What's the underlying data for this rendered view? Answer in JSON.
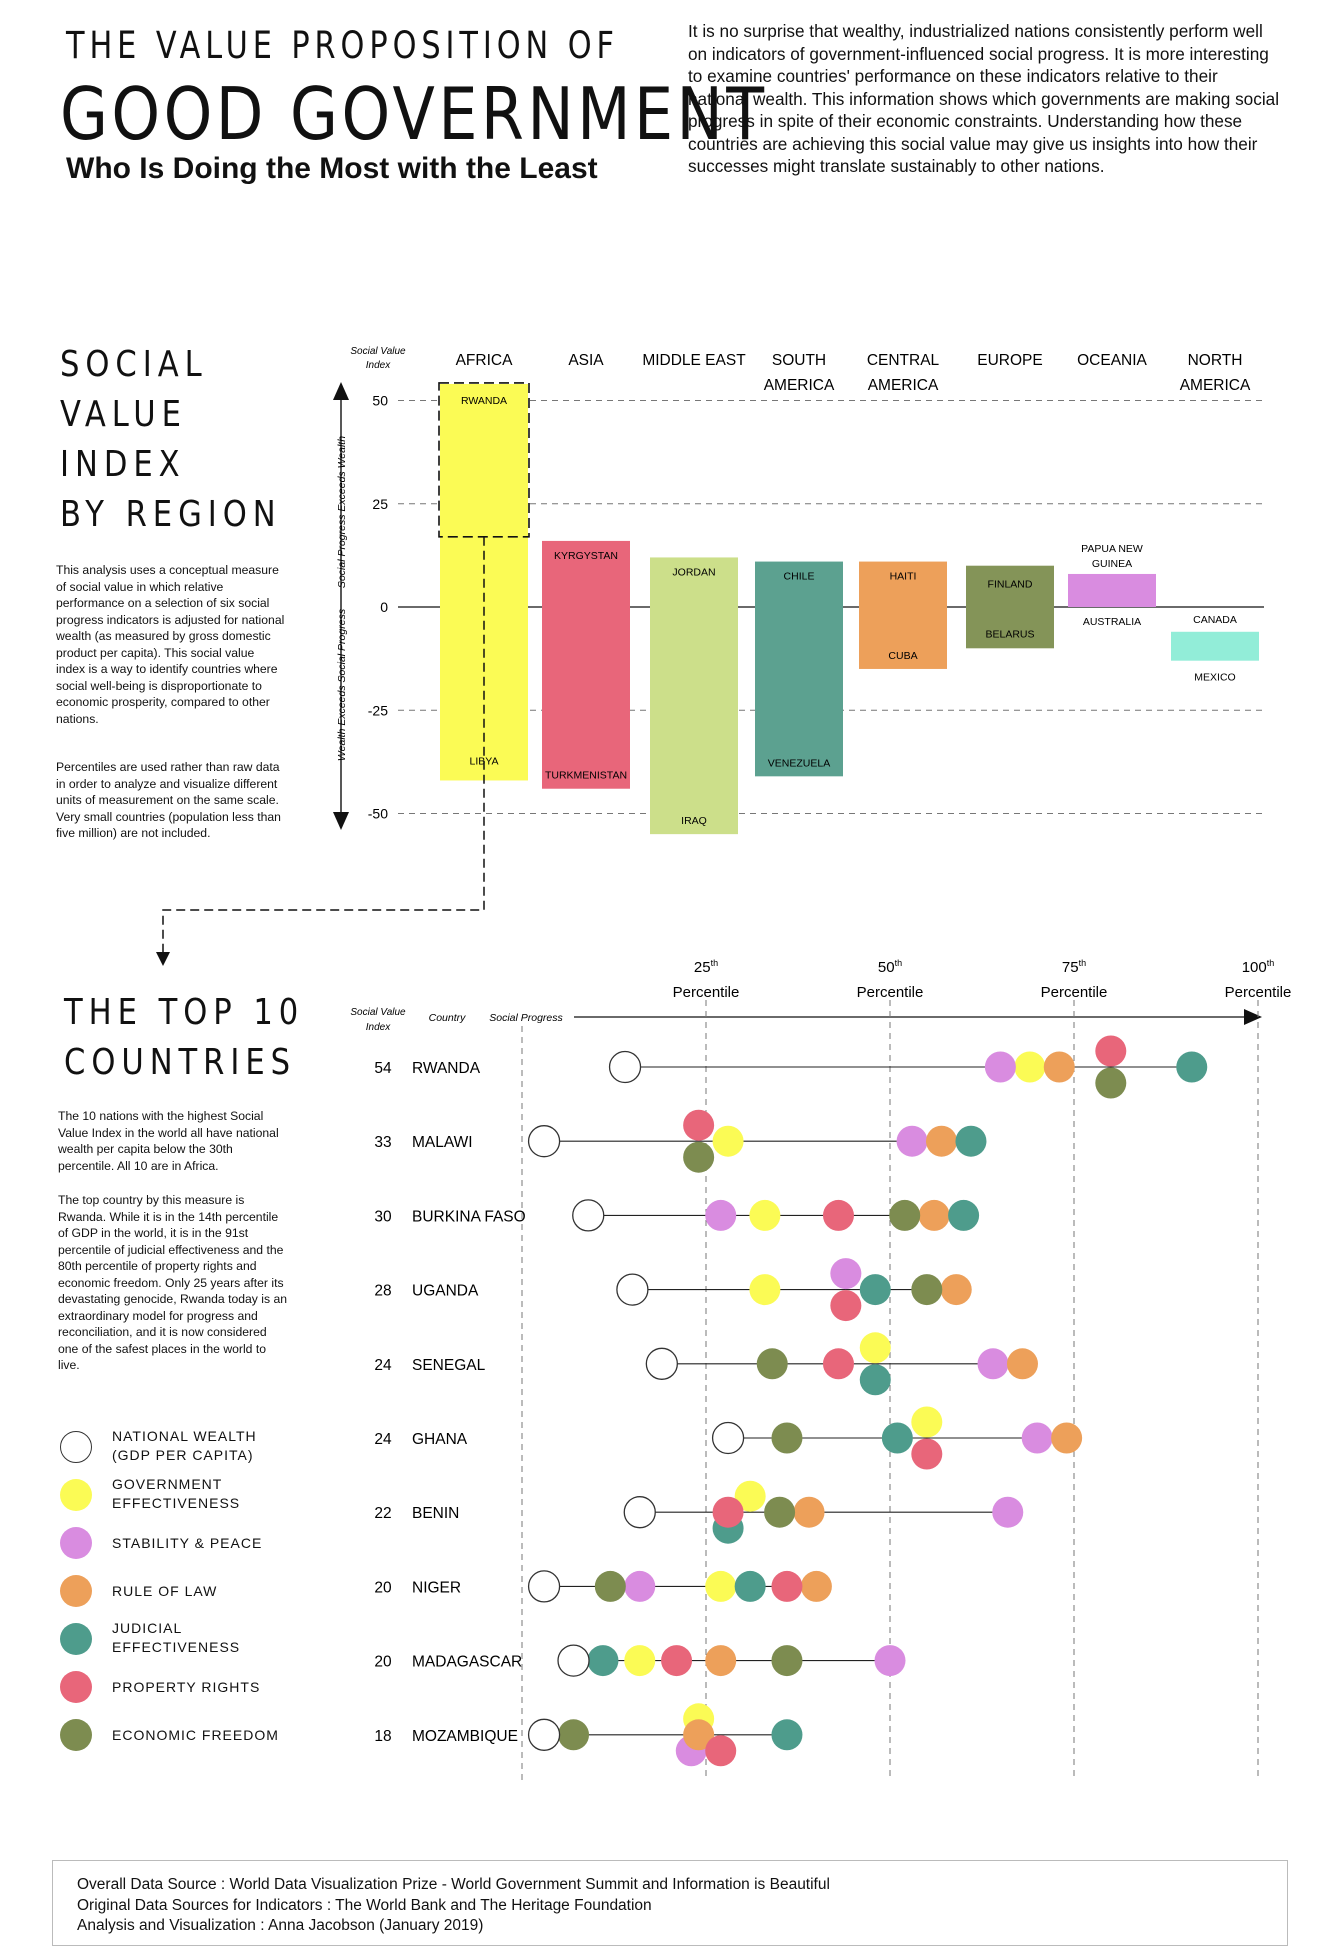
{
  "header": {
    "pre_title": "THE VALUE PROPOSITION OF",
    "main_title": "GOOD GOVERNMENT",
    "subtitle": "Who Is Doing the Most with the Least",
    "intro": "It is no surprise that wealthy, industrialized nations consistently perform well on indicators of government-influenced social progress. It is more interesting to examine countries' performance on these indicators relative to their national wealth. This information shows which governments are making social progress in spite of their economic constraints. Understanding how these countries are achieving this social value may give us insights into how their successes might translate sustainably to other nations."
  },
  "section1": {
    "title_lines": [
      "SOCIAL",
      "VALUE",
      "INDEX",
      "BY REGION"
    ],
    "para1": "This analysis uses a conceptual measure of social value in which relative performance on a selection of six social progress indicators is adjusted for national wealth (as measured by gross domestic product per capita). This social value index is a way to identify countries where social well-being is disproportionate to economic prosperity, compared to other nations.",
    "para2": "Percentiles are used rather than raw data in order to analyze and visualize different units of measurement on the same scale. Very small countries (population less than five million) are not included."
  },
  "section2": {
    "title_lines": [
      "THE TOP 10",
      "COUNTRIES"
    ],
    "para1": "The 10 nations with the highest Social Value Index in the world all have national wealth per capita below the 30th percentile. All 10 are in Africa.",
    "para2": "The top country by this measure is Rwanda. While it is in the 14th percentile of GDP in the world, it is in the 91st percentile of judicial effectiveness and the 80th percentile of property rights and economic freedom. Only 25 years after its devastating genocide, Rwanda today is an extraordinary model for progress and reconciliation, and it is now considered one of the safest places in the world to live."
  },
  "legend": [
    {
      "key": "wealth",
      "label": "NATIONAL WEALTH (GDP PER CAPITA)",
      "color": "#ffffff"
    },
    {
      "key": "gov",
      "label": "GOVERNMENT EFFECTIVENESS",
      "color": "#fbfb55"
    },
    {
      "key": "stab",
      "label": "STABILITY & PEACE",
      "color": "#d98ce0"
    },
    {
      "key": "law",
      "label": "RULE OF LAW",
      "color": "#eda05a"
    },
    {
      "key": "jud",
      "label": "JUDICIAL EFFECTIVENESS",
      "color": "#4e9c8c"
    },
    {
      "key": "prop",
      "label": "PROPERTY RIGHTS",
      "color": "#e8667a"
    },
    {
      "key": "econ",
      "label": "ECONOMIC FREEDOM",
      "color": "#7d8c50"
    }
  ],
  "footer": {
    "line1": "Overall Data Source : World Data Visualization Prize - World Government Summit and Information is Beautiful",
    "line2": "Original Data Sources for Indicators : The World Bank and The Heritage Foundation",
    "line3": "Analysis and Visualization : Anna Jacobson (January 2019)"
  },
  "chart_data": [
    {
      "type": "bar",
      "title": "Social Value Index by Region",
      "ylabel": "Social Value Index",
      "axis_label_top": "Social Progress Exceeds Wealth",
      "axis_label_bottom": "Wealth Exceeds Social Progress",
      "ylim": [
        -50,
        50
      ],
      "yticks": [
        50,
        25,
        0,
        -25,
        -50
      ],
      "regions": [
        {
          "name": "AFRICA",
          "color": "#fbfb55",
          "high": {
            "country": "RWANDA",
            "value": 54
          },
          "low": {
            "country": "LIBYA",
            "value": -42
          }
        },
        {
          "name": "ASIA",
          "color": "#e8667a",
          "high": {
            "country": "KYRGYSTAN",
            "value": 16
          },
          "low": {
            "country": "TURKMENISTAN",
            "value": -44
          }
        },
        {
          "name": "MIDDLE EAST",
          "color": "#ccdf8a",
          "high": {
            "country": "JORDAN",
            "value": 12
          },
          "low": {
            "country": "IRAQ",
            "value": -55
          }
        },
        {
          "name": "SOUTH AMERICA",
          "color": "#5ca190",
          "high": {
            "country": "CHILE",
            "value": 11
          },
          "low": {
            "country": "VENEZUELA",
            "value": -41
          }
        },
        {
          "name": "CENTRAL AMERICA",
          "color": "#eda05a",
          "high": {
            "country": "HAITI",
            "value": 11
          },
          "low": {
            "country": "CUBA",
            "value": -15
          }
        },
        {
          "name": "EUROPE",
          "color": "#849458",
          "high": {
            "country": "FINLAND",
            "value": 10
          },
          "low": {
            "country": "BELARUS",
            "value": -10
          }
        },
        {
          "name": "OCEANIA",
          "color": "#d98ce0",
          "high": {
            "country": "PAPUA NEW GUINEA",
            "value": 8
          },
          "low": {
            "country": "AUSTRALIA",
            "value": 0
          }
        },
        {
          "name": "NORTH AMERICA",
          "color": "#92edd8",
          "high": {
            "country": "CANADA",
            "value": -6
          },
          "low": {
            "country": "MEXICO",
            "value": -13
          }
        }
      ]
    },
    {
      "type": "scatter",
      "title": "The Top 10 Countries",
      "xlabel": "Social Progress",
      "col_index_label": "Social Value Index",
      "col_country_label": "Country",
      "xlim": [
        0,
        100
      ],
      "ticks": [
        {
          "value": 25,
          "sup": "th",
          "label": "Percentile"
        },
        {
          "value": 50,
          "sup": "th",
          "label": "Percentile"
        },
        {
          "value": 75,
          "sup": "th",
          "label": "Percentile"
        },
        {
          "value": 100,
          "sup": "th",
          "label": "Percentile"
        }
      ],
      "countries": [
        {
          "name": "RWANDA",
          "index": 54,
          "wealth": 14,
          "gov": 69,
          "stab": 65,
          "law": 73,
          "jud": 91,
          "prop": 80,
          "econ": 80
        },
        {
          "name": "MALAWI",
          "index": 33,
          "wealth": 3,
          "gov": 28,
          "stab": 53,
          "law": 57,
          "jud": 61,
          "prop": 24,
          "econ": 24
        },
        {
          "name": "BURKINA FASO",
          "index": 30,
          "wealth": 9,
          "gov": 33,
          "stab": 27,
          "law": 56,
          "jud": 60,
          "prop": 43,
          "econ": 52
        },
        {
          "name": "UGANDA",
          "index": 28,
          "wealth": 15,
          "gov": 33,
          "stab": 44,
          "law": 59,
          "jud": 48,
          "prop": 44,
          "econ": 55
        },
        {
          "name": "SENEGAL",
          "index": 24,
          "wealth": 19,
          "gov": 48,
          "stab": 64,
          "law": 68,
          "jud": 48,
          "prop": 43,
          "econ": 34
        },
        {
          "name": "GHANA",
          "index": 24,
          "wealth": 28,
          "gov": 55,
          "stab": 70,
          "law": 74,
          "jud": 51,
          "prop": 55,
          "econ": 36
        },
        {
          "name": "BENIN",
          "index": 22,
          "wealth": 16,
          "gov": 31,
          "stab": 66,
          "law": 39,
          "jud": 28,
          "prop": 28,
          "econ": 35
        },
        {
          "name": "NIGER",
          "index": 20,
          "wealth": 3,
          "gov": 27,
          "stab": 16,
          "law": 40,
          "jud": 31,
          "prop": 36,
          "econ": 12
        },
        {
          "name": "MADAGASCAR",
          "index": 20,
          "wealth": 7,
          "gov": 16,
          "stab": 50,
          "law": 27,
          "jud": 11,
          "prop": 21,
          "econ": 36
        },
        {
          "name": "MOZAMBIQUE",
          "index": 18,
          "wealth": 3,
          "gov": 24,
          "stab": 23,
          "law": 24,
          "jud": 36,
          "prop": 27,
          "econ": 7
        }
      ]
    }
  ]
}
